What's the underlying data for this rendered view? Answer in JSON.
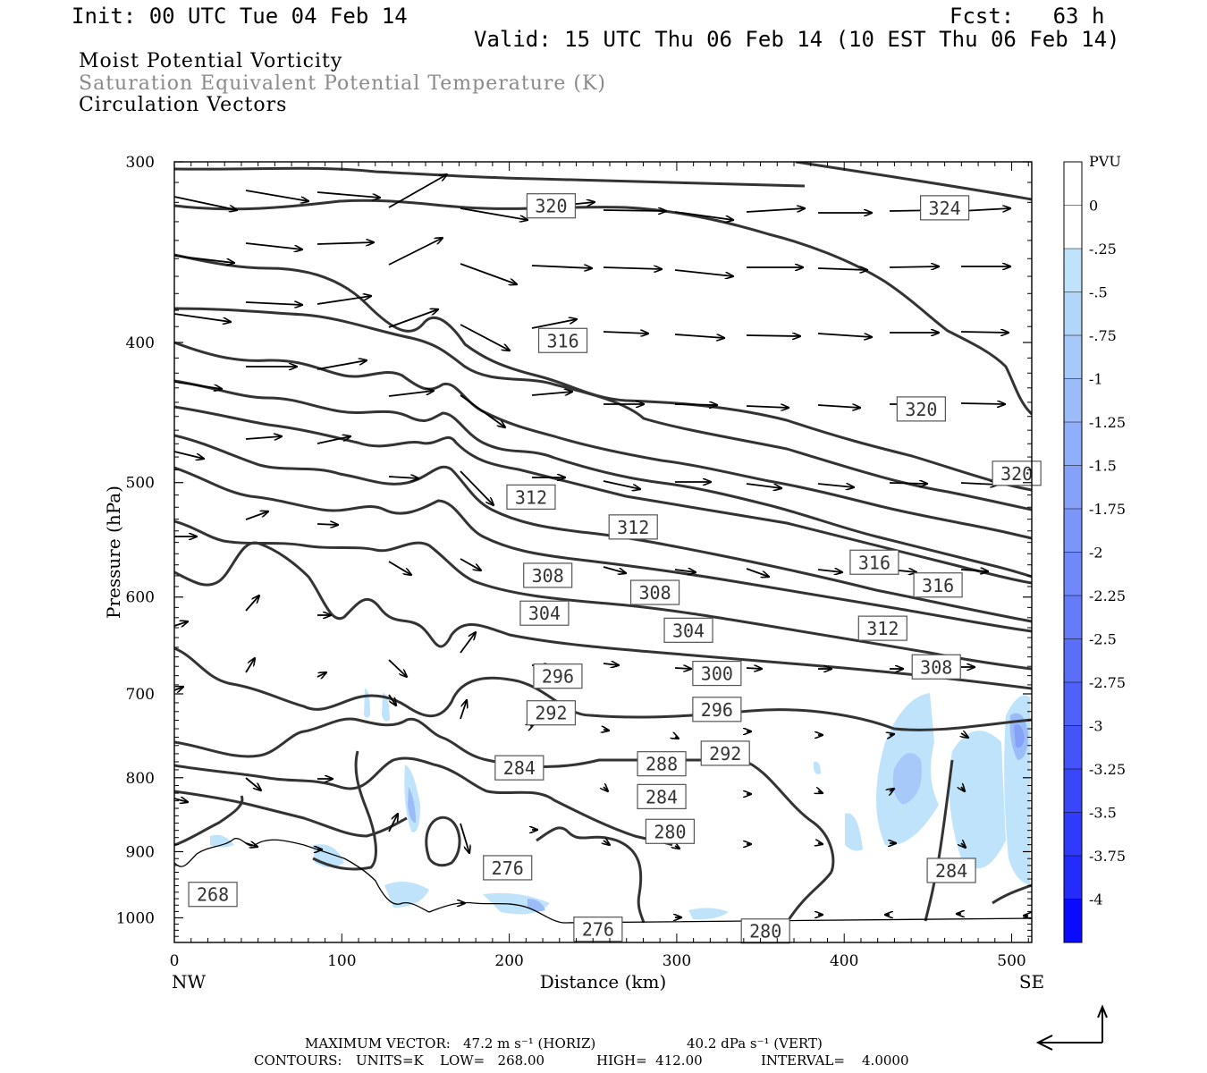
{
  "header": {
    "init": "Init: 00 UTC Tue 04 Feb 14",
    "fcst": "Fcst:   63 h",
    "valid": "Valid: 15 UTC Thu 06 Feb 14 (10 EST Thu 06 Feb 14)"
  },
  "variables": [
    "Moist Potential Vorticity",
    "Saturation Equivalent Potential Temperature (K)",
    "Circulation Vectors"
  ],
  "footer": {
    "max_vector_label": "MAXIMUM VECTOR:",
    "max_vector_horiz": "47.2 m s⁻¹ (HORIZ)",
    "max_vector_vert": "40.2 dPa s⁻¹ (VERT)",
    "contours_label": "CONTOURS:",
    "units": "UNITS=K",
    "low": "LOW=   268.00",
    "high": "HIGH=  412.00",
    "interval": "INTERVAL=    4.0000"
  },
  "chart_data": {
    "type": "contour",
    "xlabel": "Distance (km)",
    "ylabel": "Pressure (hPa)",
    "xlim": [
      0,
      512
    ],
    "ylim": [
      1040,
      300
    ],
    "y_log_scale": true,
    "x_ticks": [
      0,
      100,
      200,
      300,
      400,
      500
    ],
    "y_ticks": [
      300,
      400,
      500,
      600,
      700,
      800,
      900,
      1000
    ],
    "x_end_labels": {
      "left": "NW",
      "right": "SE"
    },
    "colorbar": {
      "units": "PVU",
      "levels": [
        "0",
        "-.25",
        "-.5",
        "-.75",
        "-1",
        "-1.25",
        "-1.5",
        "-1.75",
        "-2",
        "-2.25",
        "-2.5",
        "-2.75",
        "-3",
        "-3.25",
        "-3.5",
        "-3.75",
        "-4"
      ],
      "colors": [
        "#ffffff",
        "#bfe3fb",
        "#b2d6fa",
        "#a6c9f9",
        "#9bbcf7",
        "#90affa",
        "#86a2f8",
        "#7b95f8",
        "#7088f9",
        "#657bf8",
        "#5a6ef8",
        "#4f61f9",
        "#4554f9",
        "#3a47f9",
        "#2f3afa",
        "#242cfa",
        "#0a0aff"
      ]
    },
    "theta_es_contour_labels": [
      {
        "value": "320",
        "x": 225,
        "p": 322
      },
      {
        "value": "324",
        "x": 460,
        "p": 323
      },
      {
        "value": "316",
        "x": 232,
        "p": 399
      },
      {
        "value": "320",
        "x": 446,
        "p": 445
      },
      {
        "value": "320",
        "x": 503,
        "p": 493
      },
      {
        "value": "312",
        "x": 213,
        "p": 512
      },
      {
        "value": "312",
        "x": 274,
        "p": 537
      },
      {
        "value": "316",
        "x": 418,
        "p": 568
      },
      {
        "value": "316",
        "x": 456,
        "p": 589
      },
      {
        "value": "308",
        "x": 223,
        "p": 580
      },
      {
        "value": "308",
        "x": 287,
        "p": 596
      },
      {
        "value": "304",
        "x": 221,
        "p": 616
      },
      {
        "value": "304",
        "x": 307,
        "p": 633
      },
      {
        "value": "312",
        "x": 423,
        "p": 631
      },
      {
        "value": "308",
        "x": 455,
        "p": 671
      },
      {
        "value": "300",
        "x": 324,
        "p": 678
      },
      {
        "value": "296",
        "x": 229,
        "p": 681
      },
      {
        "value": "296",
        "x": 324,
        "p": 718
      },
      {
        "value": "292",
        "x": 225,
        "p": 722
      },
      {
        "value": "292",
        "x": 329,
        "p": 770
      },
      {
        "value": "288",
        "x": 291,
        "p": 783
      },
      {
        "value": "284",
        "x": 206,
        "p": 788
      },
      {
        "value": "284",
        "x": 291,
        "p": 825
      },
      {
        "value": "280",
        "x": 296,
        "p": 872
      },
      {
        "value": "276",
        "x": 199,
        "p": 924
      },
      {
        "value": "284",
        "x": 464,
        "p": 928
      },
      {
        "value": "268",
        "x": 23,
        "p": 964
      },
      {
        "value": "276",
        "x": 253,
        "p": 1019
      },
      {
        "value": "280",
        "x": 353,
        "p": 1022
      }
    ]
  }
}
